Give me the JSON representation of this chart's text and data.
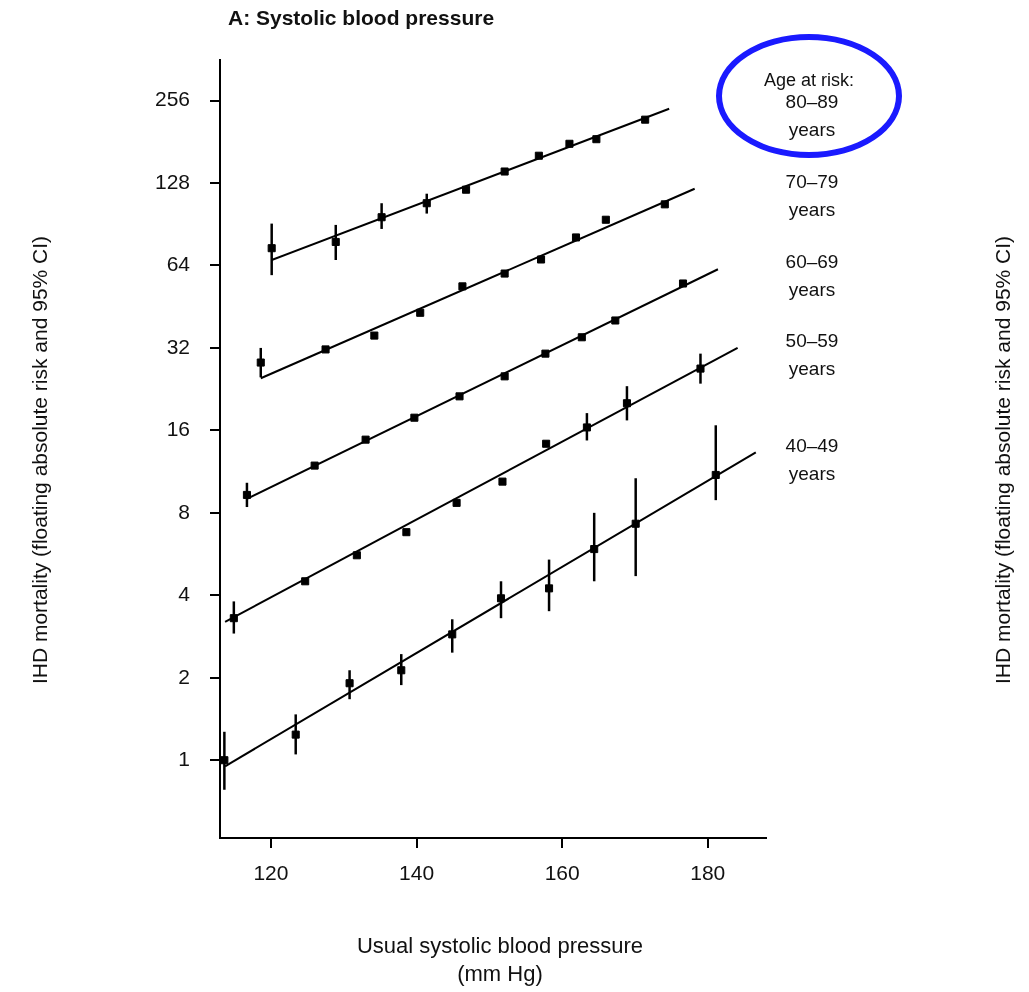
{
  "chart_data": {
    "type": "scatter",
    "title": "A: Systolic blood pressure",
    "xlabel": "Usual systolic blood pressure (mm Hg)",
    "ylabel": "IHD mortality (floating absolute risk and 95% CI)",
    "annotations": [
      "Age at risk:"
    ],
    "log": "y",
    "grid": false,
    "legend": false,
    "marker": "square",
    "xlim": [
      113,
      188
    ],
    "xticks": [
      120,
      140,
      160,
      180
    ],
    "ylim": [
      0.52,
      360
    ],
    "yticks": [
      1,
      2,
      4,
      8,
      16,
      32,
      64,
      128,
      256
    ],
    "series": [
      {
        "color": "#000000",
        "x": [
          120.1,
          128.9,
          135.2,
          141.4,
          146.8,
          152.1,
          156.8,
          161,
          164.7,
          171.4
        ],
        "values": [
          74,
          78,
          96,
          108,
          121,
          141,
          161,
          178,
          185,
          218
        ],
        "errors": [
          [
            59,
            91
          ],
          [
            67,
            90
          ],
          [
            87,
            108
          ],
          [
            99,
            117
          ],
          null,
          null,
          null,
          null,
          null,
          null
        ]
      },
      {
        "type": "line",
        "name": "80–89 years",
        "color": "#000000",
        "marker": "none",
        "x": [
          120.1,
          174.7
        ],
        "values": [
          67,
          239
        ]
      },
      {
        "color": "#000000",
        "x": [
          118.6,
          127.5,
          134.2,
          140.5,
          146.3,
          152.1,
          157.1,
          161.9,
          166,
          174.1
        ],
        "values": [
          28.3,
          31.6,
          35.5,
          43,
          53.7,
          59.8,
          67.3,
          81,
          94,
          107
        ],
        "errors": [
          [
            25,
            32
          ],
          null,
          null,
          null,
          null,
          null,
          null,
          null,
          null,
          null
        ]
      },
      {
        "type": "line",
        "name": "70–79 years",
        "color": "#000000",
        "marker": "none",
        "x": [
          118.6,
          178.2
        ],
        "values": [
          24.8,
          122
        ]
      },
      {
        "color": "#000000",
        "x": [
          116.7,
          126,
          133,
          139.7,
          145.9,
          152.1,
          157.7,
          162.7,
          167.3,
          176.6
        ],
        "values": [
          9.3,
          11.9,
          14.8,
          17.8,
          21.3,
          25.2,
          30.5,
          35,
          40.3,
          55
        ],
        "errors": [
          [
            8.4,
            10.3
          ],
          null,
          null,
          null,
          null,
          null,
          null,
          null,
          null,
          null
        ]
      },
      {
        "type": "line",
        "name": "60–69 years",
        "color": "#000000",
        "marker": "none",
        "x": [
          116.7,
          181.4
        ],
        "values": [
          9,
          62
        ]
      },
      {
        "color": "#000000",
        "x": [
          114.9,
          124.7,
          131.8,
          138.6,
          145.5,
          151.8,
          157.8,
          163.4,
          168.9,
          179
        ],
        "values": [
          3.3,
          4.5,
          5.6,
          6.8,
          8.7,
          10.4,
          14.3,
          16.4,
          20.1,
          26.9
        ],
        "errors": [
          [
            2.9,
            3.8
          ],
          null,
          null,
          null,
          null,
          null,
          null,
          [
            14.7,
            18.5
          ],
          [
            17.4,
            23.2
          ],
          [
            23.7,
            30.5
          ]
        ]
      },
      {
        "type": "line",
        "name": "50–59 years",
        "color": "#000000",
        "marker": "none",
        "x": [
          113.7,
          184.1
        ],
        "values": [
          3.2,
          32
        ]
      },
      {
        "color": "#000000",
        "x": [
          113.6,
          123.4,
          130.8,
          137.9,
          144.9,
          151.6,
          158.2,
          164.4,
          170.1,
          181.1
        ],
        "values": [
          1,
          1.24,
          1.91,
          2.13,
          2.88,
          3.9,
          4.24,
          5.9,
          7.3,
          11
        ],
        "errors": [
          [
            0.78,
            1.27
          ],
          [
            1.05,
            1.47
          ],
          [
            1.67,
            2.13
          ],
          [
            1.88,
            2.44
          ],
          [
            2.47,
            3.27
          ],
          [
            3.3,
            4.5
          ],
          [
            3.5,
            5.4
          ],
          [
            4.5,
            8
          ],
          [
            4.7,
            10.7
          ],
          [
            8.9,
            16.7
          ]
        ]
      },
      {
        "type": "line",
        "name": "40–49 years",
        "color": "#000000",
        "marker": "none",
        "x": [
          113.7,
          186.6
        ],
        "values": [
          0.95,
          13.3
        ]
      }
    ]
  }
}
